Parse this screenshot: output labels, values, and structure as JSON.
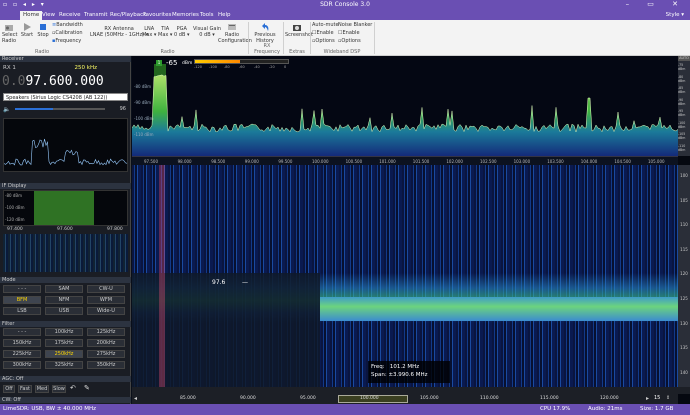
{
  "app": {
    "title": "SDR Console 3.0",
    "quick_access": "▫ ▫ ◂ ▸ ▾",
    "window_controls": "– ▭ ✕"
  },
  "menu": {
    "items": [
      "Home",
      "View",
      "Receive",
      "Transmit",
      "Rec/Playback",
      "Favourites",
      "Memories",
      "Tools",
      "Help"
    ],
    "style": "Style ▾"
  },
  "ribbon": {
    "radio": {
      "select": "Select",
      "select2": "Radio",
      "start": "Start",
      "stop": "Stop",
      "bandwidth": "Bandwidth",
      "calibration": "Calibration",
      "frequency": "Frequency",
      "group": "Radio"
    },
    "rx": {
      "antenna": "RX Antenna",
      "antenna_val": "LNAE (50MHz - 1GHz) ▾",
      "lna": "LNA",
      "lna_val": "Max ▾",
      "tia": "TIA",
      "tia_val": "Max ▾",
      "pga": "PGA",
      "pga_val": "0 dB ▾",
      "visual_gain": "Visual Gain",
      "visual_gain_val": "0 dB ▾",
      "radio_config": "Radio",
      "radio_config2": "Configuration",
      "group": "Radio"
    },
    "history": {
      "label": "Previous History",
      "group": "RX Frequency"
    },
    "extras": {
      "screenshot": "Screenshot",
      "group": "Extras"
    },
    "dsp": {
      "auto_mute": "Auto-mute",
      "enable1": "Enable",
      "options1": "Options",
      "noise_blanker": "Noise Blanker",
      "enable2": "Enable",
      "options2": "Options",
      "group": "Wideband DSP"
    }
  },
  "left": {
    "receiver": "Receiver",
    "rx": "RX 1",
    "bw": "250 kHz",
    "freq_dim": "0.0",
    "freq": "97.600.000",
    "speaker": "Speakers (Sirius Logic CS4208 (AB 122))",
    "volume": "96",
    "if_display": "IF Display",
    "if_labels": [
      "-80 dBm",
      "-100 dBm",
      "-120 dBm"
    ],
    "if_ticks": [
      "97.400",
      "97.600",
      "97.800"
    ],
    "mode": {
      "title": "Mode",
      "buttons": [
        "- - -",
        "SAM",
        "CW-U",
        "BFM",
        "NFM",
        "WFM",
        "LSB",
        "USB",
        "Wide-U"
      ],
      "selected": "BFM"
    },
    "filter": {
      "title": "Filter",
      "buttons": [
        "- - -",
        "100kHz",
        "125kHz",
        "150kHz",
        "175kHz",
        "200kHz",
        "225kHz",
        "250kHz",
        "275kHz",
        "300kHz",
        "325kHz",
        "350kHz"
      ],
      "selected": "250kHz"
    },
    "agc": {
      "title": "AGC: Off",
      "buttons": [
        "Off",
        "Fast",
        "Med",
        "Slow"
      ]
    },
    "cw": {
      "title": "CW: Off"
    }
  },
  "spectrum": {
    "peak": "-65",
    "peak_unit": "dBm",
    "meter": [
      "-120",
      "-100",
      "-80",
      "-60",
      "-40",
      "-20",
      "0"
    ],
    "left_scale": [
      "-80 dBm",
      "-90 dBm",
      "-100 dBm",
      "-110 dBm"
    ],
    "right_scale": [
      "-75 dBm",
      "-80 dBm",
      "-85 dBm",
      "-90 dBm",
      "-95 dBm",
      "-100 dBm",
      "-105 dBm",
      "-110 dBm"
    ],
    "auto": "AUTO",
    "ticks": [
      "97.500",
      "98.000",
      "98.500",
      "99.000",
      "99.500",
      "100.000",
      "100.500",
      "101.000",
      "101.500",
      "102.000",
      "102.500",
      "103.000",
      "103.500",
      "104.000",
      "104.500",
      "105.000"
    ],
    "marker": "1"
  },
  "waterfall": {
    "freq_label": "97.6",
    "freq_dash": "—",
    "info_freq_label": "Freq:",
    "info_freq": "101.2 MHz",
    "info_span_label": "Span:",
    "info_span": "±3.990.6 MHz",
    "right_scale": [
      "100",
      "105",
      "110",
      "115",
      "120",
      "125",
      "130",
      "135",
      "140"
    ],
    "bottom_ticks": [
      "85.000",
      "90.000",
      "95.000",
      "100.000",
      "105.000",
      "110.000",
      "115.000",
      "120.000"
    ],
    "zoom": "15"
  },
  "status": {
    "left": "LimeSDR: USB, BW ± 40.000 MHz",
    "cpu": "CPU 17.9%",
    "audio": "Audio: 21ms",
    "size": "Size: 1.7 GB"
  }
}
